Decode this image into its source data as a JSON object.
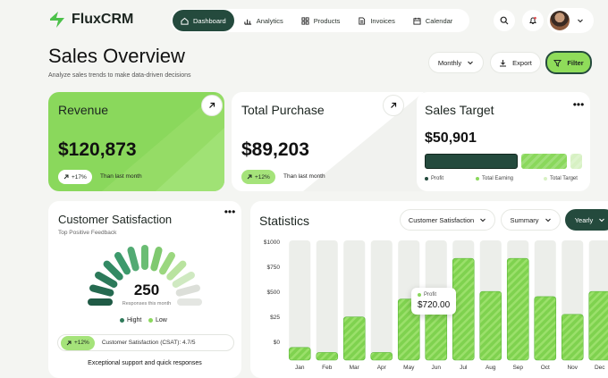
{
  "app": {
    "name": "FluxCRM"
  },
  "nav": [
    {
      "label": "Dashboard",
      "icon": "home-icon",
      "active": true
    },
    {
      "label": "Analytics",
      "icon": "bar-chart-icon",
      "active": false
    },
    {
      "label": "Products",
      "icon": "grid-icon",
      "active": false
    },
    {
      "label": "Invoices",
      "icon": "document-icon",
      "active": false
    },
    {
      "label": "Calendar",
      "icon": "calendar-icon",
      "active": false
    }
  ],
  "header": {
    "title": "Sales Overview",
    "subtitle": "Analyze sales trends to make data-driven decisions",
    "period_label": "Monthly",
    "export_label": "Export",
    "filter_label": "Filter"
  },
  "revenue": {
    "title": "Revenue",
    "value": "$120,873",
    "change": "+17%",
    "note": "Than last month"
  },
  "purchase": {
    "title": "Total Purchase",
    "value": "$89,203",
    "change": "+12%",
    "note": "Than last month"
  },
  "target": {
    "title": "Sales Target",
    "value": "$50,901",
    "legend": [
      "Profit",
      "Total Earning",
      "Total Target"
    ],
    "colors": [
      "#244a3d",
      "#8ad85c",
      "#d7f1c3"
    ]
  },
  "satisfaction": {
    "title": "Customer Satisfaction",
    "subtitle": "Top Positive Feedback",
    "value": "250",
    "caption": "Responses this month",
    "legend_high": "Hight",
    "legend_low": "Low",
    "change": "+12%",
    "csat": "Customer Satisfaction (CSAT): 4.7/5",
    "footer": "Exceptional support and quick responses"
  },
  "statistics": {
    "title": "Statistics",
    "filter_metric": "Customer Satisfaction",
    "filter_view": "Summary",
    "filter_period": "Yearly",
    "tooltip_label": "Profit",
    "tooltip_value": "$720.00"
  },
  "chart_data": {
    "type": "bar",
    "categories": [
      "Jan",
      "Feb",
      "Mar",
      "Apr",
      "May",
      "Jun",
      "Jul",
      "Aug",
      "Sep",
      "Oct",
      "Nov",
      "Dec"
    ],
    "values": [
      5,
      3,
      17,
      3,
      24,
      22,
      40,
      27,
      40,
      25,
      18,
      27
    ],
    "y_tick_labels": [
      "$1000",
      "$750",
      "$500",
      "$25",
      "$0"
    ],
    "highlight_index": 5,
    "colors": {
      "bar": "#7fd24f",
      "bar_track": "#eceeea"
    }
  }
}
